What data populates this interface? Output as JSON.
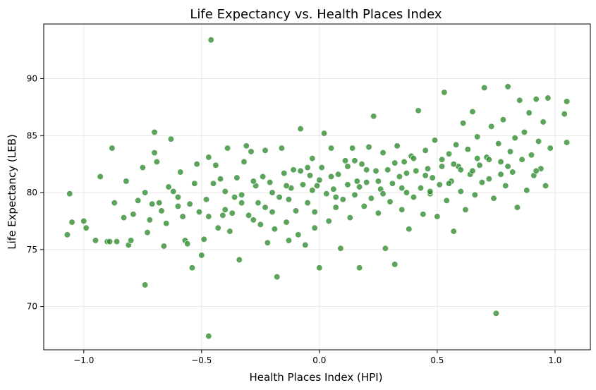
{
  "chart_data": {
    "type": "scatter",
    "title": "Life Expectancy vs. Health Places Index",
    "xlabel": "Health Places Index (HPI)",
    "ylabel": "Life Expectancy (LEB)",
    "xlim": [
      -1.17,
      1.15
    ],
    "ylim": [
      66.2,
      94.8
    ],
    "x_ticks": [
      -1.0,
      -0.5,
      0.0,
      0.5,
      1.0
    ],
    "x_tick_labels": [
      "−1.0",
      "−0.5",
      "0.0",
      "0.5",
      "1.0"
    ],
    "y_ticks": [
      70,
      75,
      80,
      85,
      90
    ],
    "y_tick_labels": [
      "70",
      "75",
      "80",
      "85",
      "90"
    ],
    "grid": true,
    "marker_color": "#2e8b2e",
    "marker_edge_color": "#ffffff",
    "series": [
      {
        "points": [
          [
            -1.07,
            76.3
          ],
          [
            -1.06,
            79.9
          ],
          [
            -1.05,
            77.4
          ],
          [
            -1.0,
            77.5
          ],
          [
            -0.99,
            76.9
          ],
          [
            -0.95,
            75.8
          ],
          [
            -0.93,
            81.4
          ],
          [
            -0.9,
            75.7
          ],
          [
            -0.89,
            75.7
          ],
          [
            -0.88,
            83.9
          ],
          [
            -0.87,
            79.1
          ],
          [
            -0.86,
            75.7
          ],
          [
            -0.83,
            77.8
          ],
          [
            -0.82,
            81.0
          ],
          [
            -0.81,
            75.4
          ],
          [
            -0.8,
            75.8
          ],
          [
            -0.79,
            78.1
          ],
          [
            -0.77,
            79.3
          ],
          [
            -0.75,
            82.2
          ],
          [
            -0.74,
            80.0
          ],
          [
            -0.74,
            71.9
          ],
          [
            -0.73,
            76.5
          ],
          [
            -0.72,
            77.6
          ],
          [
            -0.71,
            79.0
          ],
          [
            -0.7,
            85.3
          ],
          [
            -0.7,
            83.5
          ],
          [
            -0.69,
            82.7
          ],
          [
            -0.68,
            79.1
          ],
          [
            -0.67,
            78.4
          ],
          [
            -0.66,
            75.3
          ],
          [
            -0.65,
            77.3
          ],
          [
            -0.64,
            80.5
          ],
          [
            -0.63,
            84.7
          ],
          [
            -0.62,
            80.1
          ],
          [
            -0.6,
            79.6
          ],
          [
            -0.59,
            81.8
          ],
          [
            -0.58,
            77.9
          ],
          [
            -0.57,
            75.8
          ],
          [
            -0.56,
            75.5
          ],
          [
            -0.55,
            79.0
          ],
          [
            -0.54,
            73.4
          ],
          [
            -0.53,
            80.8
          ],
          [
            -0.52,
            82.5
          ],
          [
            -0.51,
            78.3
          ],
          [
            -0.5,
            74.5
          ],
          [
            -0.49,
            75.9
          ],
          [
            -0.48,
            79.4
          ],
          [
            -0.47,
            77.9
          ],
          [
            -0.47,
            83.1
          ],
          [
            -0.47,
            67.4
          ],
          [
            -0.46,
            93.4
          ],
          [
            -0.45,
            80.8
          ],
          [
            -0.44,
            82.4
          ],
          [
            -0.43,
            76.9
          ],
          [
            -0.42,
            81.2
          ],
          [
            -0.41,
            78.0
          ],
          [
            -0.4,
            80.1
          ],
          [
            -0.39,
            83.9
          ],
          [
            -0.38,
            76.6
          ],
          [
            -0.37,
            78.2
          ],
          [
            -0.36,
            79.6
          ],
          [
            -0.35,
            81.3
          ],
          [
            -0.34,
            74.1
          ],
          [
            -0.33,
            79.8
          ],
          [
            -0.32,
            82.7
          ],
          [
            -0.31,
            84.1
          ],
          [
            -0.3,
            78.0
          ],
          [
            -0.29,
            83.6
          ],
          [
            -0.28,
            77.6
          ],
          [
            -0.27,
            80.6
          ],
          [
            -0.26,
            79.1
          ],
          [
            -0.25,
            77.2
          ],
          [
            -0.24,
            81.4
          ],
          [
            -0.23,
            83.7
          ],
          [
            -0.22,
            75.6
          ],
          [
            -0.21,
            80.9
          ],
          [
            -0.2,
            78.3
          ],
          [
            -0.19,
            76.8
          ],
          [
            -0.18,
            72.6
          ],
          [
            -0.17,
            79.6
          ],
          [
            -0.16,
            83.9
          ],
          [
            -0.15,
            81.7
          ],
          [
            -0.14,
            77.4
          ],
          [
            -0.13,
            75.8
          ],
          [
            -0.12,
            80.4
          ],
          [
            -0.11,
            82.0
          ],
          [
            -0.1,
            78.4
          ],
          [
            -0.09,
            76.3
          ],
          [
            -0.08,
            85.6
          ],
          [
            -0.07,
            80.7
          ],
          [
            -0.06,
            75.4
          ],
          [
            -0.05,
            79.1
          ],
          [
            -0.04,
            81.5
          ],
          [
            -0.03,
            83.0
          ],
          [
            -0.02,
            76.9
          ],
          [
            -0.02,
            78.3
          ],
          [
            -0.01,
            80.6
          ],
          [
            0.0,
            73.4
          ],
          [
            0.01,
            82.2
          ],
          [
            0.02,
            85.2
          ],
          [
            0.03,
            79.9
          ],
          [
            0.04,
            77.5
          ],
          [
            0.05,
            83.9
          ],
          [
            0.06,
            80.3
          ],
          [
            0.07,
            78.7
          ],
          [
            0.08,
            81.6
          ],
          [
            0.09,
            75.1
          ],
          [
            0.1,
            79.4
          ],
          [
            0.11,
            82.8
          ],
          [
            0.12,
            80.7
          ],
          [
            0.13,
            77.8
          ],
          [
            0.14,
            83.9
          ],
          [
            0.15,
            79.8
          ],
          [
            0.16,
            81.0
          ],
          [
            0.17,
            73.4
          ],
          [
            0.18,
            82.5
          ],
          [
            0.19,
            78.8
          ],
          [
            0.2,
            80.9
          ],
          [
            0.21,
            84.0
          ],
          [
            0.22,
            79.5
          ],
          [
            0.23,
            86.7
          ],
          [
            0.24,
            81.9
          ],
          [
            0.25,
            78.2
          ],
          [
            0.26,
            80.3
          ],
          [
            0.27,
            83.5
          ],
          [
            0.28,
            75.1
          ],
          [
            0.29,
            82.0
          ],
          [
            0.3,
            79.2
          ],
          [
            0.31,
            80.8
          ],
          [
            0.32,
            73.7
          ],
          [
            0.33,
            84.1
          ],
          [
            0.34,
            81.4
          ],
          [
            0.35,
            78.5
          ],
          [
            0.36,
            82.7
          ],
          [
            0.37,
            80.0
          ],
          [
            0.38,
            76.8
          ],
          [
            0.39,
            83.2
          ],
          [
            0.4,
            79.6
          ],
          [
            0.41,
            81.9
          ],
          [
            0.42,
            87.2
          ],
          [
            0.43,
            80.4
          ],
          [
            0.44,
            78.1
          ],
          [
            0.45,
            83.7
          ],
          [
            0.46,
            82.1
          ],
          [
            0.47,
            79.9
          ],
          [
            0.48,
            81.3
          ],
          [
            0.49,
            84.6
          ],
          [
            0.5,
            77.9
          ],
          [
            0.51,
            80.7
          ],
          [
            0.52,
            82.9
          ],
          [
            0.53,
            88.8
          ],
          [
            0.54,
            79.3
          ],
          [
            0.55,
            83.4
          ],
          [
            0.56,
            81.0
          ],
          [
            0.57,
            76.6
          ],
          [
            0.58,
            84.2
          ],
          [
            0.59,
            82.3
          ],
          [
            0.6,
            80.1
          ],
          [
            0.61,
            86.1
          ],
          [
            0.62,
            78.5
          ],
          [
            0.63,
            83.8
          ],
          [
            0.64,
            81.6
          ],
          [
            0.65,
            87.1
          ],
          [
            0.66,
            79.8
          ],
          [
            0.67,
            84.9
          ],
          [
            0.68,
            82.4
          ],
          [
            0.69,
            80.9
          ],
          [
            0.7,
            89.2
          ],
          [
            0.71,
            83.1
          ],
          [
            0.72,
            81.2
          ],
          [
            0.73,
            85.8
          ],
          [
            0.74,
            79.5
          ],
          [
            0.75,
            69.4
          ],
          [
            0.76,
            84.3
          ],
          [
            0.77,
            82.7
          ],
          [
            0.78,
            86.4
          ],
          [
            0.79,
            80.6
          ],
          [
            0.8,
            89.3
          ],
          [
            0.81,
            83.6
          ],
          [
            0.82,
            81.8
          ],
          [
            0.83,
            84.8
          ],
          [
            0.84,
            78.7
          ],
          [
            0.85,
            88.1
          ],
          [
            0.86,
            82.9
          ],
          [
            0.87,
            85.3
          ],
          [
            0.88,
            80.2
          ],
          [
            0.89,
            87.0
          ],
          [
            0.9,
            83.3
          ],
          [
            0.91,
            81.5
          ],
          [
            0.92,
            88.2
          ],
          [
            0.93,
            84.5
          ],
          [
            0.94,
            82.1
          ],
          [
            0.95,
            86.2
          ],
          [
            0.96,
            80.6
          ],
          [
            0.97,
            88.3
          ],
          [
            0.98,
            83.9
          ],
          [
            1.04,
            86.9
          ],
          [
            1.05,
            88.0
          ],
          [
            1.05,
            84.4
          ],
          [
            -0.14,
            80.6
          ],
          [
            -0.05,
            82.2
          ],
          [
            0.05,
            81.4
          ],
          [
            0.15,
            82.8
          ],
          [
            0.25,
            81.0
          ],
          [
            0.35,
            80.4
          ],
          [
            0.45,
            81.5
          ],
          [
            0.55,
            80.8
          ],
          [
            0.65,
            81.9
          ],
          [
            -0.33,
            79.1
          ],
          [
            -0.23,
            78.7
          ],
          [
            -0.13,
            79.4
          ],
          [
            -0.03,
            80.2
          ],
          [
            0.07,
            79.6
          ],
          [
            0.17,
            80.5
          ],
          [
            0.27,
            79.9
          ],
          [
            0.37,
            81.7
          ],
          [
            0.47,
            80.1
          ],
          [
            0.57,
            82.5
          ],
          [
            0.67,
            83.0
          ],
          [
            0.77,
            81.6
          ],
          [
            -0.6,
            78.8
          ],
          [
            -0.4,
            78.5
          ],
          [
            -0.2,
            80.0
          ],
          [
            0.0,
            81.1
          ],
          [
            0.2,
            82.0
          ],
          [
            0.4,
            83.0
          ],
          [
            0.6,
            82.0
          ],
          [
            0.8,
            82.3
          ],
          [
            -0.28,
            81.0
          ],
          [
            -0.08,
            81.9
          ],
          [
            0.12,
            82.3
          ],
          [
            0.32,
            82.6
          ],
          [
            0.52,
            82.3
          ],
          [
            0.72,
            82.9
          ],
          [
            0.92,
            81.9
          ]
        ]
      }
    ]
  }
}
